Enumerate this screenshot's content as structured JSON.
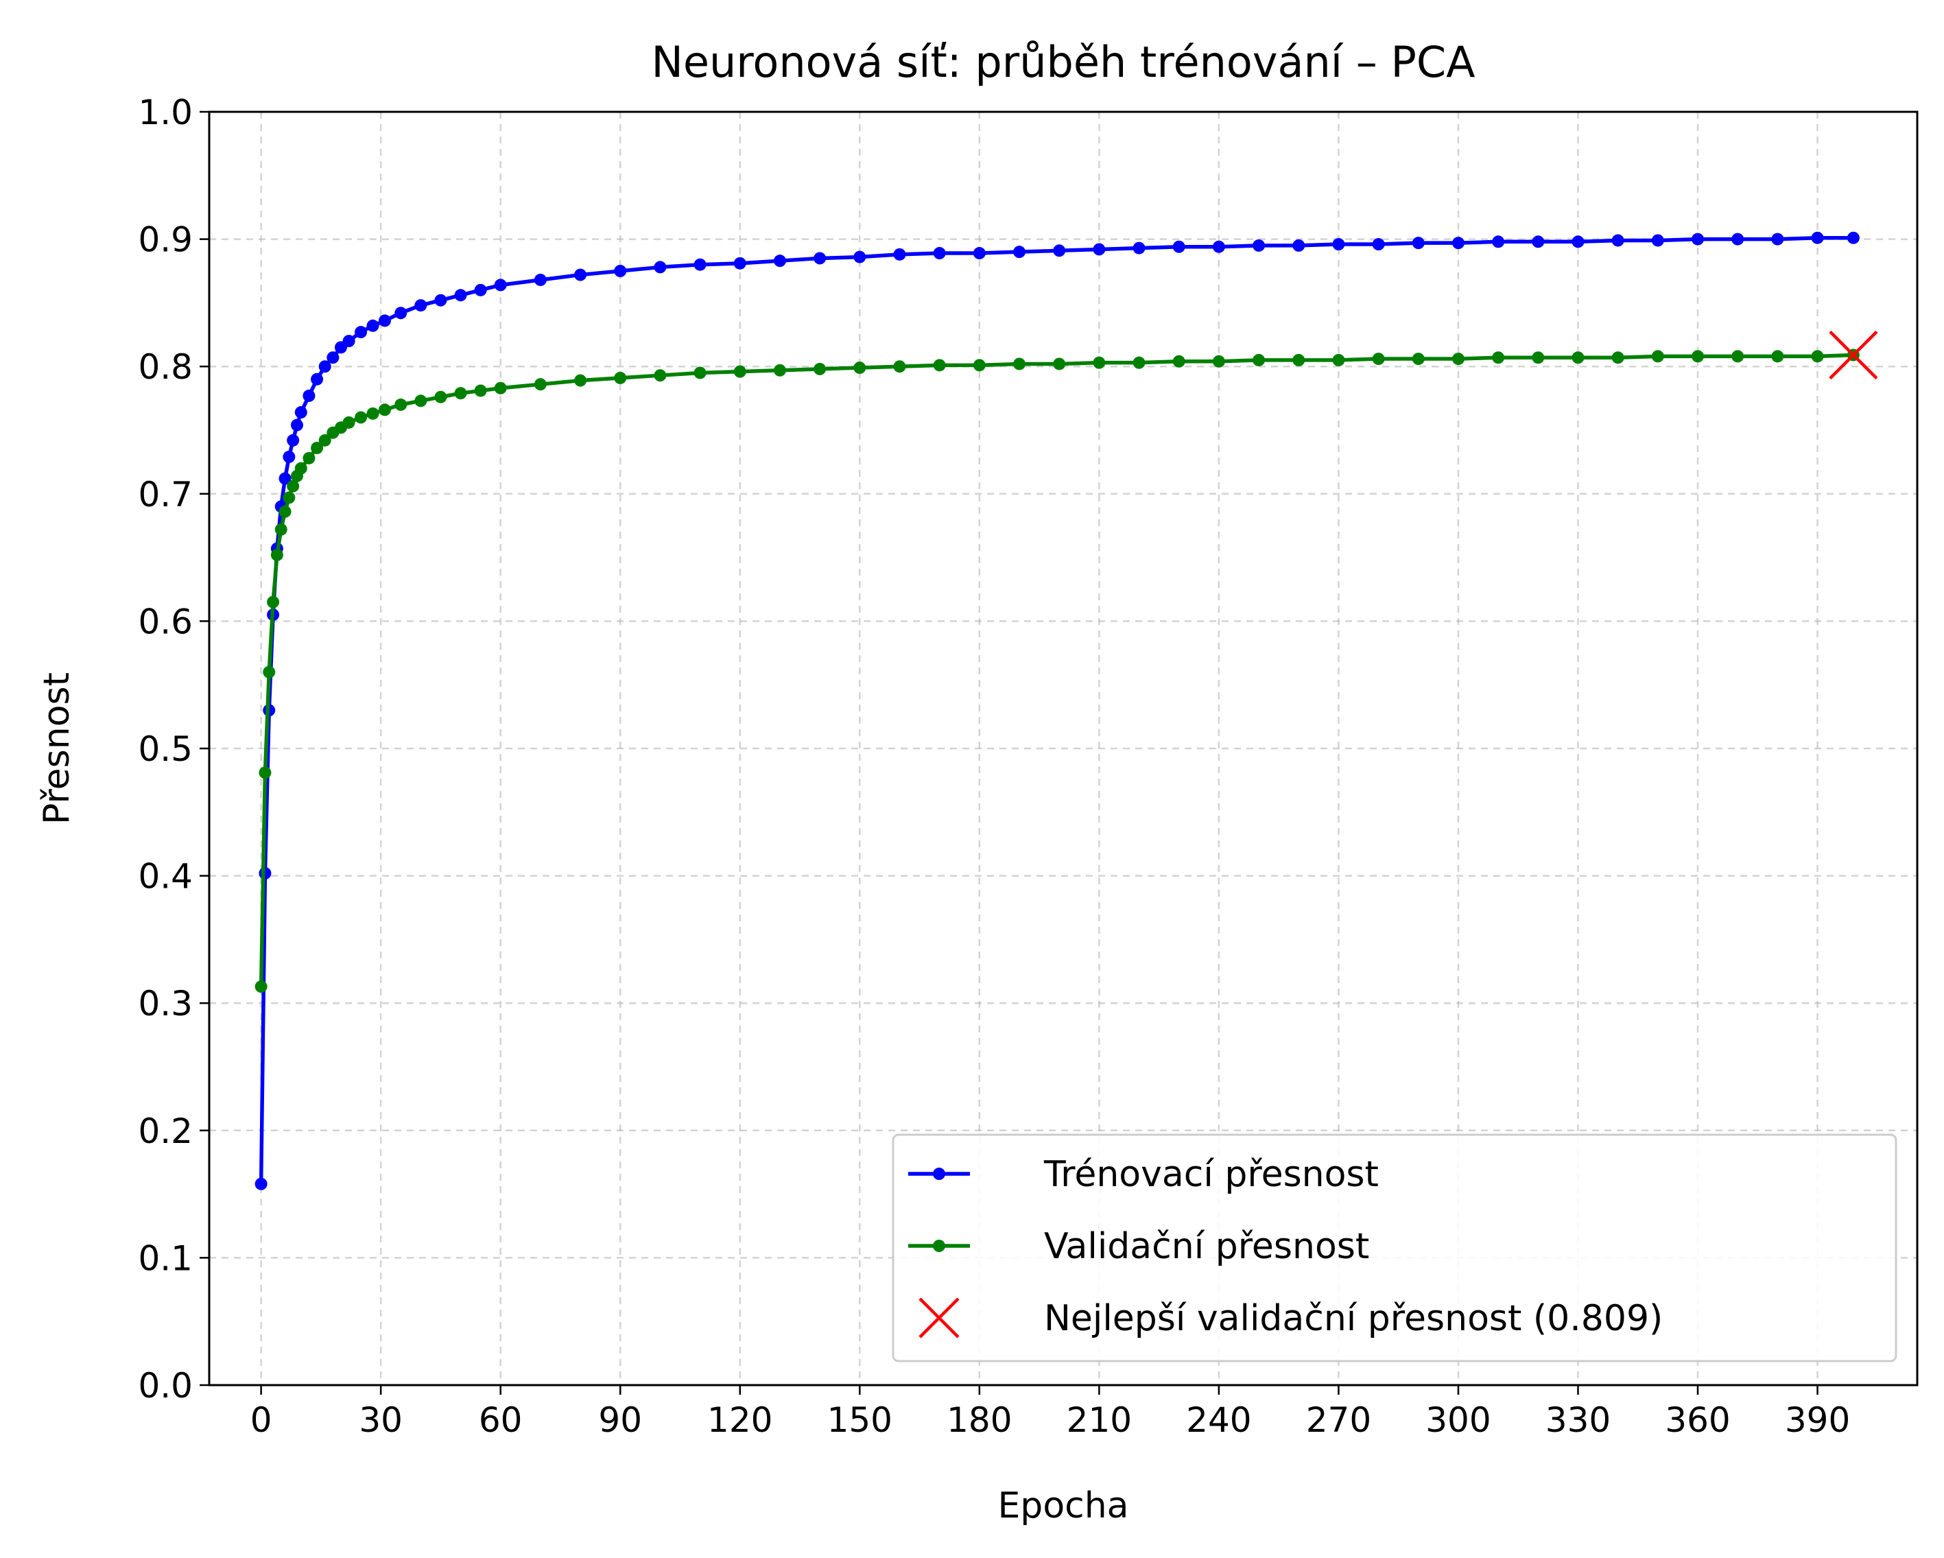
{
  "chart_data": {
    "type": "line",
    "title": "Neuronová síť: průběh trénování – PCA",
    "xlabel": "Epocha",
    "ylabel": "Přesnost",
    "xlim": [
      -13,
      415
    ],
    "ylim": [
      0.0,
      1.0
    ],
    "xticks": [
      0,
      30,
      60,
      90,
      120,
      150,
      180,
      210,
      240,
      270,
      300,
      330,
      360,
      390
    ],
    "yticks": [
      0.0,
      0.1,
      0.2,
      0.3,
      0.4,
      0.5,
      0.6,
      0.7,
      0.8,
      0.9,
      1.0
    ],
    "ytick_labels": [
      "0.0",
      "0.1",
      "0.2",
      "0.3",
      "0.4",
      "0.5",
      "0.6",
      "0.7",
      "0.8",
      "0.9",
      "1.0"
    ],
    "grid": true,
    "legend_position": "lower-right",
    "series": [
      {
        "name": "Trénovací přesnost",
        "color": "#0000ff",
        "marker": "circle",
        "x": [
          0,
          1,
          2,
          3,
          4,
          5,
          6,
          7,
          8,
          9,
          10,
          12,
          14,
          16,
          18,
          20,
          22,
          25,
          28,
          31,
          35,
          40,
          45,
          50,
          55,
          60,
          70,
          80,
          90,
          100,
          110,
          120,
          130,
          140,
          150,
          160,
          170,
          180,
          190,
          200,
          210,
          220,
          230,
          240,
          250,
          260,
          270,
          280,
          290,
          300,
          310,
          320,
          330,
          340,
          350,
          360,
          370,
          380,
          390,
          399
        ],
        "y": [
          0.158,
          0.402,
          0.53,
          0.605,
          0.657,
          0.69,
          0.712,
          0.729,
          0.742,
          0.754,
          0.764,
          0.777,
          0.79,
          0.8,
          0.807,
          0.815,
          0.82,
          0.827,
          0.832,
          0.836,
          0.842,
          0.848,
          0.852,
          0.856,
          0.86,
          0.864,
          0.868,
          0.872,
          0.875,
          0.878,
          0.88,
          0.881,
          0.883,
          0.885,
          0.886,
          0.888,
          0.889,
          0.889,
          0.89,
          0.891,
          0.892,
          0.893,
          0.894,
          0.894,
          0.895,
          0.895,
          0.896,
          0.896,
          0.897,
          0.897,
          0.898,
          0.898,
          0.898,
          0.899,
          0.899,
          0.9,
          0.9,
          0.9,
          0.901,
          0.901
        ]
      },
      {
        "name": "Validační přesnost",
        "color": "#008000",
        "marker": "circle",
        "x": [
          0,
          1,
          2,
          3,
          4,
          5,
          6,
          7,
          8,
          9,
          10,
          12,
          14,
          16,
          18,
          20,
          22,
          25,
          28,
          31,
          35,
          40,
          45,
          50,
          55,
          60,
          70,
          80,
          90,
          100,
          110,
          120,
          130,
          140,
          150,
          160,
          170,
          180,
          190,
          200,
          210,
          220,
          230,
          240,
          250,
          260,
          270,
          280,
          290,
          300,
          310,
          320,
          330,
          340,
          350,
          360,
          370,
          380,
          390,
          399
        ],
        "y": [
          0.313,
          0.481,
          0.56,
          0.615,
          0.652,
          0.672,
          0.686,
          0.697,
          0.706,
          0.714,
          0.72,
          0.728,
          0.736,
          0.742,
          0.748,
          0.752,
          0.756,
          0.76,
          0.763,
          0.766,
          0.77,
          0.773,
          0.776,
          0.779,
          0.781,
          0.783,
          0.786,
          0.789,
          0.791,
          0.793,
          0.795,
          0.796,
          0.797,
          0.798,
          0.799,
          0.8,
          0.801,
          0.801,
          0.802,
          0.802,
          0.803,
          0.803,
          0.804,
          0.804,
          0.805,
          0.805,
          0.805,
          0.806,
          0.806,
          0.806,
          0.807,
          0.807,
          0.807,
          0.807,
          0.808,
          0.808,
          0.808,
          0.808,
          0.808,
          0.809
        ]
      }
    ],
    "best_point": {
      "label": "Nejlepší validační přesnost (0.809)",
      "x": 399,
      "y": 0.809,
      "color": "#ff0000",
      "marker": "x"
    }
  }
}
